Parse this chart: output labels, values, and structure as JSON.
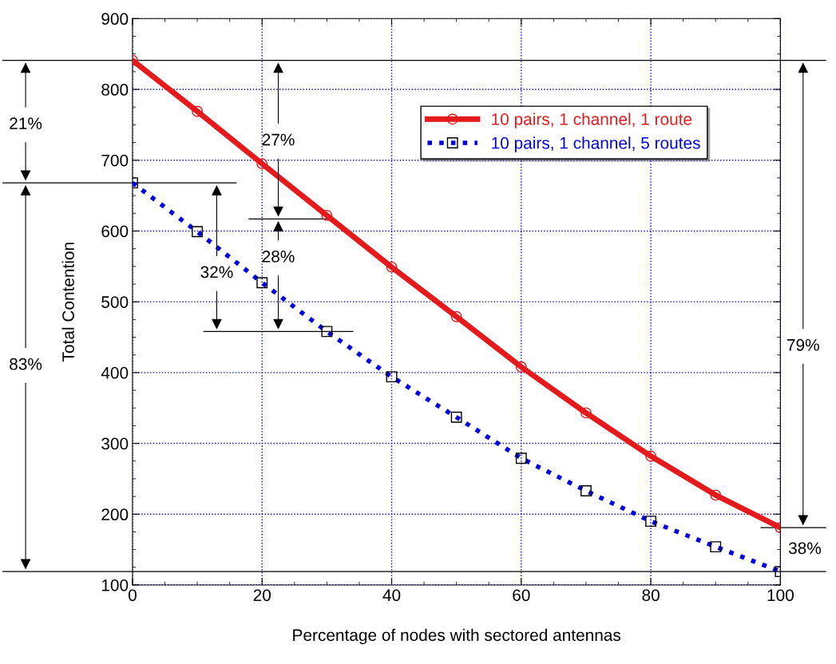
{
  "chart_data": {
    "type": "line",
    "xlabel": "Percentage of nodes with sectored antennas",
    "ylabel": "Total Contention",
    "x": [
      0,
      10,
      20,
      30,
      40,
      50,
      60,
      70,
      80,
      90,
      100
    ],
    "series": [
      {
        "name": "10 pairs, 1 channel, 1 route",
        "color": "#e41a1c",
        "marker": "circle",
        "line_style": "solid",
        "values": [
          841,
          769,
          695,
          622,
          549,
          479,
          408,
          343,
          282,
          227,
          181
        ]
      },
      {
        "name": "10 pairs, 1 channel, 5 routes",
        "color": "#0000e0",
        "marker": "square",
        "line_style": "dotted",
        "values": [
          668,
          599,
          527,
          458,
          394,
          337,
          279,
          233,
          190,
          154,
          119
        ]
      }
    ],
    "xlim": [
      0,
      100
    ],
    "xticks": [
      0,
      20,
      40,
      60,
      80,
      100
    ],
    "ylim": [
      100,
      900
    ],
    "yticks": [
      100,
      200,
      300,
      400,
      500,
      600,
      700,
      800,
      900
    ],
    "grid": true,
    "legend": "top right",
    "ref_lines": [
      {
        "axis": "y",
        "value": 841,
        "color": "#000000"
      },
      {
        "axis": "y",
        "value": 119,
        "color": "#000000"
      }
    ],
    "annotations": [
      "21%",
      "83%",
      "27%",
      "28%",
      "32%",
      "79%",
      "38%"
    ]
  }
}
